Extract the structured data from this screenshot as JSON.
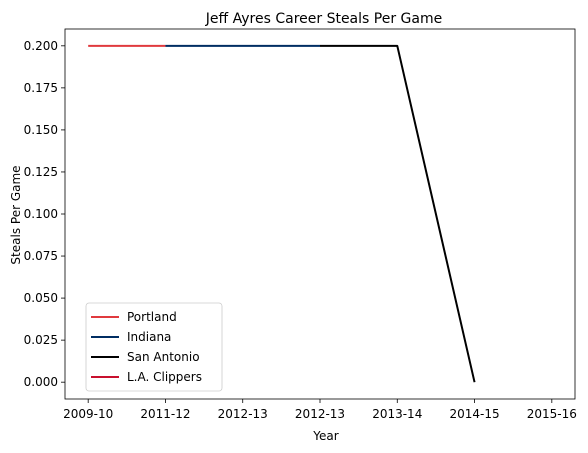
{
  "chart_data": {
    "type": "line",
    "title": "Jeff Ayres Career Steals Per Game",
    "xlabel": "Year",
    "ylabel": "Steals Per Game",
    "x_tick_labels": [
      "2009-10",
      "2011-12",
      "2012-13",
      "2012-13",
      "2013-14",
      "2014-15",
      "2015-16"
    ],
    "xlim": [
      -0.3,
      6.3
    ],
    "ylim": [
      -0.01,
      0.21
    ],
    "y_ticks": [
      "0.000",
      "0.025",
      "0.050",
      "0.075",
      "0.100",
      "0.125",
      "0.150",
      "0.175",
      "0.200"
    ],
    "grid": false,
    "legend_position": "lower-left",
    "series": [
      {
        "name": "Portland",
        "color": "#E03A3E",
        "points": [
          [
            0,
            0.2
          ],
          [
            1,
            0.2
          ]
        ]
      },
      {
        "name": "Indiana",
        "color": "#002D62",
        "points": [
          [
            1,
            0.2
          ],
          [
            2,
            0.2
          ],
          [
            3,
            0.2
          ]
        ]
      },
      {
        "name": "San Antonio",
        "color": "#000000",
        "points": [
          [
            3,
            0.2
          ],
          [
            4,
            0.2
          ],
          [
            5,
            0.0
          ]
        ]
      },
      {
        "name": "L.A. Clippers",
        "color": "#C8102E",
        "points": []
      }
    ]
  }
}
